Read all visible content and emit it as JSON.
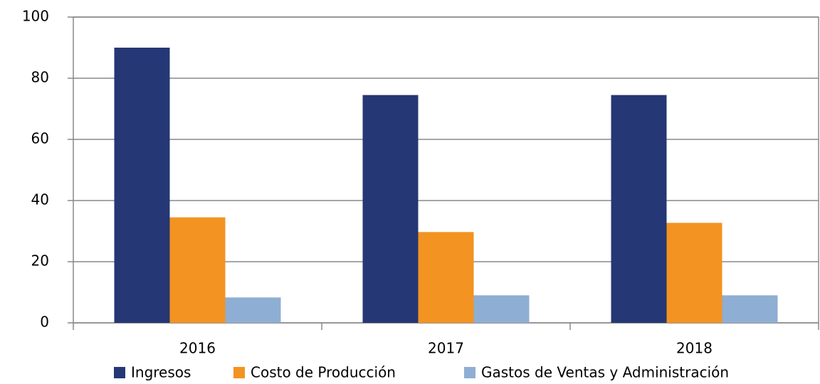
{
  "chart_data": {
    "type": "bar",
    "categories": [
      "2016",
      "2017",
      "2018"
    ],
    "series": [
      {
        "name": "Ingresos",
        "color": "#253774",
        "values": [
          90,
          74.5,
          74.5
        ]
      },
      {
        "name": "Costo de Producción",
        "color": "#f39321",
        "values": [
          34.5,
          29.7,
          32.7
        ]
      },
      {
        "name": "Gastos de Ventas y Administración",
        "color": "#8faed3",
        "values": [
          8.3,
          9,
          9
        ]
      }
    ],
    "ylim": [
      0,
      100
    ],
    "yticks": [
      0,
      20,
      40,
      60,
      80,
      100
    ],
    "grid": true,
    "legend": "bottom"
  }
}
